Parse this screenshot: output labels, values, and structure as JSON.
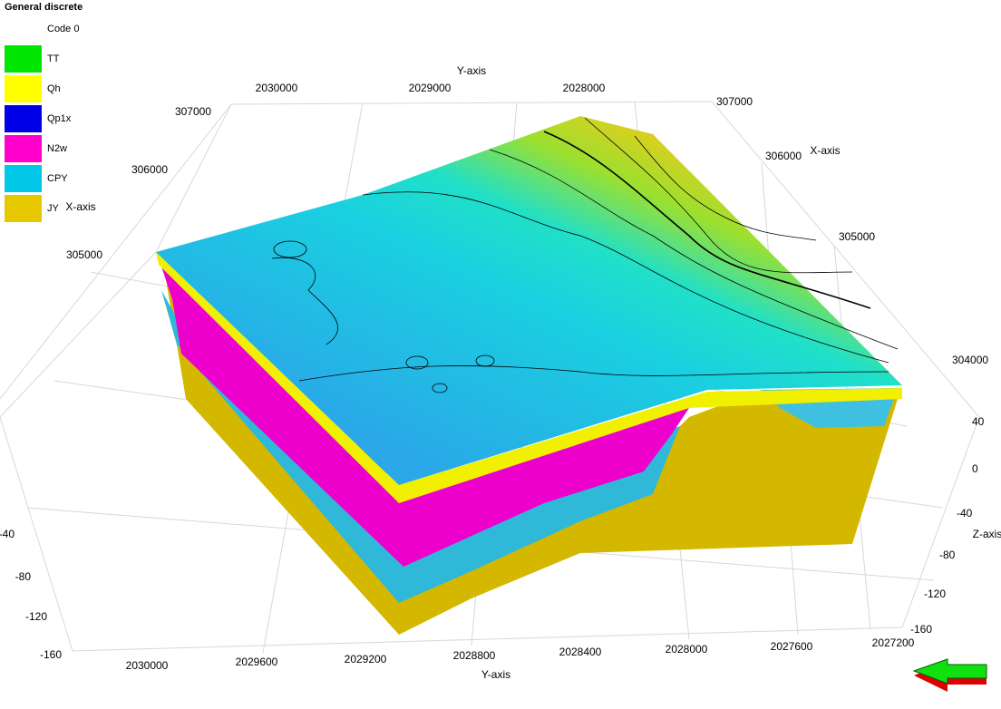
{
  "legend": {
    "title": "General discrete",
    "items": [
      {
        "label": "Code 0",
        "color": "#ffffff"
      },
      {
        "label": "TT",
        "color": "#00e600"
      },
      {
        "label": "Qh",
        "color": "#ffff00"
      },
      {
        "label": "Qp1x",
        "color": "#0000e6"
      },
      {
        "label": "N2w",
        "color": "#ff00cc"
      },
      {
        "label": "CPY",
        "color": "#00c8e6"
      },
      {
        "label": "JY",
        "color": "#e6c800"
      }
    ]
  },
  "axes": {
    "y_top": {
      "label": "Y-axis",
      "ticks": [
        "2030000",
        "2029000",
        "2028000"
      ]
    },
    "x_left": {
      "label": "X-axis",
      "ticks": [
        "307000",
        "306000",
        "305000"
      ]
    },
    "x_right": {
      "label": "X-axis",
      "ticks": [
        "307000",
        "306000",
        "305000",
        "304000"
      ]
    },
    "z_left": {
      "ticks": [
        "-40",
        "-80",
        "-120",
        "-160"
      ]
    },
    "z_right": {
      "label": "Z-axis",
      "ticks": [
        "40",
        "0",
        "-40",
        "-80",
        "-120",
        "-160"
      ]
    },
    "y_bottom": {
      "label": "Y-axis",
      "ticks": [
        "2030000",
        "2029600",
        "2029200",
        "2028800",
        "2028400",
        "2028000",
        "2027600",
        "2027200"
      ]
    }
  }
}
